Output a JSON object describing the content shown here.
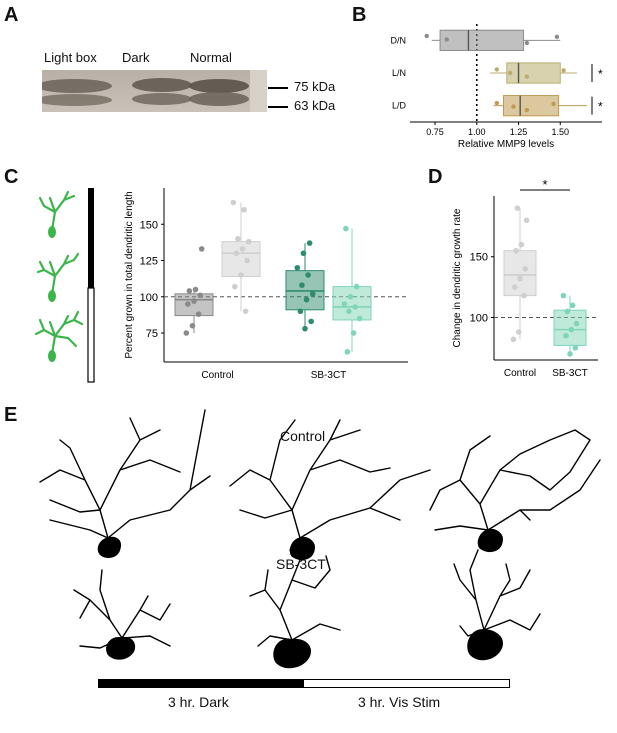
{
  "panels": {
    "a": "A",
    "b": "B",
    "c": "C",
    "d": "D",
    "e": "E"
  },
  "panel_a": {
    "lanes": [
      "Light box",
      "Dark",
      "Normal"
    ],
    "markers": [
      "75 kDa",
      "63 kDa"
    ]
  },
  "chart_data": [
    {
      "type": "box",
      "panel": "B",
      "orientation": "horizontal",
      "xlabel": "Relative MMP9 levels",
      "xticks": [
        "0.75",
        "1.00",
        "1.25",
        "1.50"
      ],
      "xlim": [
        0.6,
        1.75
      ],
      "reference_line": 1.0,
      "categories": [
        "D/N",
        "L/N",
        "L/D"
      ],
      "boxes": [
        {
          "category": "D/N",
          "color": "#8c8c8c",
          "q1": 0.78,
          "median": 0.95,
          "q3": 1.28,
          "whisker_low": 0.73,
          "whisker_high": 1.5,
          "points": [
            0.7,
            0.82,
            1.3,
            1.48
          ]
        },
        {
          "category": "L/N",
          "color": "#b9ad6e",
          "q1": 1.18,
          "median": 1.25,
          "q3": 1.5,
          "whisker_low": 1.08,
          "whisker_high": 1.6,
          "points": [
            1.12,
            1.2,
            1.3,
            1.52
          ]
        },
        {
          "category": "L/D",
          "color": "#c09a50",
          "q1": 1.16,
          "median": 1.26,
          "q3": 1.49,
          "whisker_low": 1.1,
          "whisker_high": 1.66,
          "points": [
            1.12,
            1.22,
            1.3,
            1.46
          ]
        }
      ],
      "significance": [
        {
          "category": "L/N",
          "label": "*"
        },
        {
          "category": "L/D",
          "label": "*"
        }
      ]
    },
    {
      "type": "box",
      "panel": "C",
      "ylabel": "Percent grown in total dendritic length",
      "yticks": [
        "75",
        "100",
        "125",
        "150"
      ],
      "ylim": [
        55,
        175
      ],
      "reference_line": 100,
      "groups": [
        "Control",
        "SB-3CT"
      ],
      "boxes": [
        {
          "group": "Control",
          "color": "#8a8a8a",
          "q1": 87,
          "median": 98,
          "q3": 102,
          "whisker_low": 75,
          "whisker_high": 105,
          "points": [
            75,
            80,
            88,
            95,
            97,
            101,
            104,
            105,
            133
          ]
        },
        {
          "group": "Control",
          "color": "#cfcfcf",
          "q1": 114,
          "median": 130,
          "q3": 138,
          "whisker_low": 90,
          "whisker_high": 165,
          "points": [
            90,
            107,
            115,
            125,
            130,
            133,
            138,
            140,
            160,
            165
          ]
        },
        {
          "group": "SB-3CT",
          "color": "#2e8b6e",
          "q1": 91,
          "median": 104,
          "q3": 118,
          "whisker_low": 78,
          "whisker_high": 137,
          "points": [
            78,
            83,
            90,
            98,
            102,
            108,
            115,
            120,
            130,
            137
          ]
        },
        {
          "group": "SB-3CT",
          "color": "#7fd6b6",
          "q1": 84,
          "median": 93,
          "q3": 107,
          "whisker_low": 62,
          "whisker_high": 147,
          "points": [
            62,
            75,
            85,
            90,
            93,
            95,
            100,
            107,
            147
          ]
        }
      ]
    },
    {
      "type": "box",
      "panel": "D",
      "ylabel": "Change in dendritic growth rate",
      "yticks": [
        "100",
        "150"
      ],
      "ylim": [
        65,
        200
      ],
      "reference_line": 100,
      "categories": [
        "Control",
        "SB-3CT"
      ],
      "boxes": [
        {
          "category": "Control",
          "color": "#cfcfcf",
          "q1": 118,
          "median": 135,
          "q3": 155,
          "whisker_low": 82,
          "whisker_high": 190,
          "points": [
            82,
            88,
            118,
            125,
            132,
            140,
            155,
            160,
            180,
            190
          ]
        },
        {
          "category": "SB-3CT",
          "color": "#7fd6b6",
          "q1": 77,
          "median": 90,
          "q3": 106,
          "whisker_low": 70,
          "whisker_high": 118,
          "points": [
            70,
            75,
            85,
            90,
            95,
            105,
            110,
            118
          ]
        }
      ],
      "significance": [
        {
          "between": [
            "Control",
            "SB-3CT"
          ],
          "label": "*"
        }
      ]
    }
  ],
  "panel_e": {
    "rows": [
      "Control",
      "SB-3CT"
    ],
    "timeline": [
      "3 hr. Dark",
      "3 hr. Vis Stim"
    ]
  },
  "colors": {
    "neuron_green": "#3bb54a",
    "black": "#000000"
  }
}
